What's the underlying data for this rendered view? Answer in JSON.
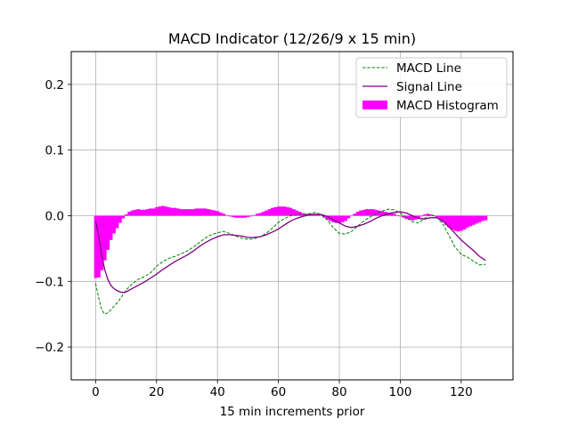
{
  "chart_data": {
    "type": "line",
    "title": "MACD Indicator (12/26/9 x 15 min)",
    "xlabel": "15 min increments prior",
    "ylabel": "",
    "xlim": [
      -8,
      137
    ],
    "ylim": [
      -0.25,
      0.25
    ],
    "xticks": [
      0,
      20,
      40,
      60,
      80,
      100,
      120
    ],
    "yticks": [
      -0.2,
      -0.1,
      0.0,
      0.1,
      0.2
    ],
    "ytick_labels": [
      "−0.2",
      "−0.1",
      "0.0",
      "0.1",
      "0.2"
    ],
    "grid": true,
    "legend_position": "top-right",
    "series": [
      {
        "name": "MACD Line",
        "kind": "line",
        "style": "dashed",
        "color": "#008000",
        "points": [
          [
            0,
            -0.103
          ],
          [
            1,
            -0.125
          ],
          [
            2,
            -0.143
          ],
          [
            3,
            -0.15
          ],
          [
            4,
            -0.148
          ],
          [
            5,
            -0.143
          ],
          [
            6,
            -0.138
          ],
          [
            7,
            -0.133
          ],
          [
            8,
            -0.127
          ],
          [
            9,
            -0.12
          ],
          [
            10,
            -0.113
          ],
          [
            12,
            -0.104
          ],
          [
            14,
            -0.097
          ],
          [
            16,
            -0.093
          ],
          [
            18,
            -0.087
          ],
          [
            20,
            -0.077
          ],
          [
            22,
            -0.07
          ],
          [
            24,
            -0.065
          ],
          [
            26,
            -0.062
          ],
          [
            28,
            -0.058
          ],
          [
            30,
            -0.054
          ],
          [
            32,
            -0.048
          ],
          [
            34,
            -0.041
          ],
          [
            36,
            -0.034
          ],
          [
            38,
            -0.029
          ],
          [
            40,
            -0.026
          ],
          [
            42,
            -0.024
          ],
          [
            44,
            -0.027
          ],
          [
            46,
            -0.031
          ],
          [
            48,
            -0.034
          ],
          [
            50,
            -0.036
          ],
          [
            52,
            -0.035
          ],
          [
            54,
            -0.032
          ],
          [
            56,
            -0.027
          ],
          [
            58,
            -0.019
          ],
          [
            60,
            -0.01
          ],
          [
            62,
            -0.004
          ],
          [
            64,
            0.0
          ],
          [
            66,
            0.001
          ],
          [
            68,
            0.002
          ],
          [
            70,
            0.003
          ],
          [
            72,
            0.005
          ],
          [
            74,
            0.002
          ],
          [
            76,
            -0.006
          ],
          [
            78,
            -0.018
          ],
          [
            80,
            -0.027
          ],
          [
            82,
            -0.028
          ],
          [
            84,
            -0.024
          ],
          [
            86,
            -0.016
          ],
          [
            88,
            -0.008
          ],
          [
            90,
            -0.002
          ],
          [
            92,
            0.003
          ],
          [
            94,
            0.007
          ],
          [
            96,
            0.01
          ],
          [
            98,
            0.009
          ],
          [
            100,
            0.004
          ],
          [
            102,
            -0.003
          ],
          [
            104,
            -0.009
          ],
          [
            106,
            -0.011
          ],
          [
            108,
            -0.004
          ],
          [
            110,
            0.002
          ],
          [
            112,
            -0.002
          ],
          [
            114,
            -0.013
          ],
          [
            116,
            -0.03
          ],
          [
            118,
            -0.048
          ],
          [
            120,
            -0.059
          ],
          [
            122,
            -0.063
          ],
          [
            124,
            -0.069
          ],
          [
            126,
            -0.075
          ],
          [
            128,
            -0.074
          ]
        ]
      },
      {
        "name": "Signal Line",
        "kind": "line",
        "style": "solid",
        "color": "#800080",
        "points": [
          [
            0,
            -0.008
          ],
          [
            1,
            -0.03
          ],
          [
            2,
            -0.06
          ],
          [
            3,
            -0.082
          ],
          [
            4,
            -0.097
          ],
          [
            5,
            -0.106
          ],
          [
            6,
            -0.111
          ],
          [
            7,
            -0.114
          ],
          [
            8,
            -0.116
          ],
          [
            9,
            -0.117
          ],
          [
            10,
            -0.116
          ],
          [
            12,
            -0.111
          ],
          [
            14,
            -0.106
          ],
          [
            16,
            -0.101
          ],
          [
            18,
            -0.095
          ],
          [
            20,
            -0.089
          ],
          [
            22,
            -0.082
          ],
          [
            24,
            -0.076
          ],
          [
            26,
            -0.07
          ],
          [
            28,
            -0.065
          ],
          [
            30,
            -0.06
          ],
          [
            32,
            -0.054
          ],
          [
            34,
            -0.047
          ],
          [
            36,
            -0.041
          ],
          [
            38,
            -0.036
          ],
          [
            40,
            -0.032
          ],
          [
            42,
            -0.029
          ],
          [
            44,
            -0.029
          ],
          [
            46,
            -0.03
          ],
          [
            48,
            -0.031
          ],
          [
            50,
            -0.033
          ],
          [
            52,
            -0.033
          ],
          [
            54,
            -0.032
          ],
          [
            56,
            -0.029
          ],
          [
            58,
            -0.025
          ],
          [
            60,
            -0.02
          ],
          [
            62,
            -0.014
          ],
          [
            64,
            -0.008
          ],
          [
            66,
            -0.004
          ],
          [
            68,
            -0.001
          ],
          [
            70,
            0.001
          ],
          [
            72,
            0.002
          ],
          [
            74,
            0.002
          ],
          [
            76,
            -0.001
          ],
          [
            78,
            -0.006
          ],
          [
            80,
            -0.011
          ],
          [
            82,
            -0.016
          ],
          [
            84,
            -0.018
          ],
          [
            86,
            -0.016
          ],
          [
            88,
            -0.013
          ],
          [
            90,
            -0.009
          ],
          [
            92,
            -0.004
          ],
          [
            94,
            0.0
          ],
          [
            96,
            0.003
          ],
          [
            98,
            0.005
          ],
          [
            100,
            0.006
          ],
          [
            102,
            0.004
          ],
          [
            104,
            0.0
          ],
          [
            106,
            -0.004
          ],
          [
            108,
            -0.005
          ],
          [
            110,
            -0.003
          ],
          [
            112,
            -0.003
          ],
          [
            114,
            -0.008
          ],
          [
            116,
            -0.017
          ],
          [
            118,
            -0.027
          ],
          [
            120,
            -0.037
          ],
          [
            122,
            -0.045
          ],
          [
            124,
            -0.053
          ],
          [
            126,
            -0.062
          ],
          [
            128,
            -0.068
          ]
        ]
      },
      {
        "name": "MACD Histogram",
        "kind": "bar",
        "color": "#ff00ff",
        "points": [
          [
            0,
            -0.095
          ],
          [
            1,
            -0.094
          ],
          [
            2,
            -0.083
          ],
          [
            3,
            -0.068
          ],
          [
            4,
            -0.052
          ],
          [
            5,
            -0.037
          ],
          [
            6,
            -0.027
          ],
          [
            7,
            -0.019
          ],
          [
            8,
            -0.011
          ],
          [
            9,
            -0.004
          ],
          [
            10,
            0.002
          ],
          [
            11,
            0.006
          ],
          [
            12,
            0.008
          ],
          [
            13,
            0.009
          ],
          [
            14,
            0.01
          ],
          [
            15,
            0.009
          ],
          [
            16,
            0.009
          ],
          [
            17,
            0.01
          ],
          [
            18,
            0.011
          ],
          [
            19,
            0.011
          ],
          [
            20,
            0.013
          ],
          [
            21,
            0.014
          ],
          [
            22,
            0.015
          ],
          [
            23,
            0.014
          ],
          [
            24,
            0.013
          ],
          [
            25,
            0.012
          ],
          [
            26,
            0.012
          ],
          [
            27,
            0.011
          ],
          [
            28,
            0.01
          ],
          [
            29,
            0.01
          ],
          [
            30,
            0.01
          ],
          [
            31,
            0.01
          ],
          [
            32,
            0.01
          ],
          [
            33,
            0.011
          ],
          [
            34,
            0.011
          ],
          [
            35,
            0.011
          ],
          [
            36,
            0.011
          ],
          [
            37,
            0.01
          ],
          [
            38,
            0.009
          ],
          [
            39,
            0.008
          ],
          [
            40,
            0.007
          ],
          [
            41,
            0.005
          ],
          [
            42,
            0.003
          ],
          [
            43,
            0.001
          ],
          [
            44,
            -0.001
          ],
          [
            45,
            -0.002
          ],
          [
            46,
            -0.003
          ],
          [
            47,
            -0.003
          ],
          [
            48,
            -0.003
          ],
          [
            49,
            -0.003
          ],
          [
            50,
            -0.002
          ],
          [
            51,
            -0.001
          ],
          [
            52,
            0.001
          ],
          [
            53,
            0.003
          ],
          [
            54,
            0.004
          ],
          [
            55,
            0.006
          ],
          [
            56,
            0.008
          ],
          [
            57,
            0.01
          ],
          [
            58,
            0.012
          ],
          [
            59,
            0.013
          ],
          [
            60,
            0.014
          ],
          [
            61,
            0.014
          ],
          [
            62,
            0.014
          ],
          [
            63,
            0.013
          ],
          [
            64,
            0.012
          ],
          [
            65,
            0.01
          ],
          [
            66,
            0.008
          ],
          [
            67,
            0.006
          ],
          [
            68,
            0.004
          ],
          [
            69,
            0.003
          ],
          [
            70,
            0.003
          ],
          [
            71,
            0.003
          ],
          [
            72,
            0.003
          ],
          [
            73,
            0.002
          ],
          [
            74,
            0.0
          ],
          [
            75,
            -0.003
          ],
          [
            76,
            -0.006
          ],
          [
            77,
            -0.008
          ],
          [
            78,
            -0.01
          ],
          [
            79,
            -0.011
          ],
          [
            80,
            -0.011
          ],
          [
            81,
            -0.01
          ],
          [
            82,
            -0.008
          ],
          [
            83,
            -0.004
          ],
          [
            84,
            0.0
          ],
          [
            85,
            0.003
          ],
          [
            86,
            0.006
          ],
          [
            87,
            0.008
          ],
          [
            88,
            0.009
          ],
          [
            89,
            0.01
          ],
          [
            90,
            0.01
          ],
          [
            91,
            0.01
          ],
          [
            92,
            0.009
          ],
          [
            93,
            0.008
          ],
          [
            94,
            0.007
          ],
          [
            95,
            0.006
          ],
          [
            96,
            0.005
          ],
          [
            97,
            0.004
          ],
          [
            98,
            0.003
          ],
          [
            99,
            0.001
          ],
          [
            100,
            -0.001
          ],
          [
            101,
            -0.003
          ],
          [
            102,
            -0.005
          ],
          [
            103,
            -0.006
          ],
          [
            104,
            -0.007
          ],
          [
            105,
            -0.006
          ],
          [
            106,
            -0.004
          ],
          [
            107,
            -0.001
          ],
          [
            108,
            0.002
          ],
          [
            109,
            0.003
          ],
          [
            110,
            0.002
          ],
          [
            111,
            0.0
          ],
          [
            112,
            -0.002
          ],
          [
            113,
            -0.006
          ],
          [
            114,
            -0.01
          ],
          [
            115,
            -0.014
          ],
          [
            116,
            -0.018
          ],
          [
            117,
            -0.021
          ],
          [
            118,
            -0.023
          ],
          [
            119,
            -0.024
          ],
          [
            120,
            -0.023
          ],
          [
            121,
            -0.021
          ],
          [
            122,
            -0.018
          ],
          [
            123,
            -0.016
          ],
          [
            124,
            -0.014
          ],
          [
            125,
            -0.012
          ],
          [
            126,
            -0.01
          ],
          [
            127,
            -0.008
          ],
          [
            128,
            -0.007
          ]
        ]
      }
    ]
  }
}
